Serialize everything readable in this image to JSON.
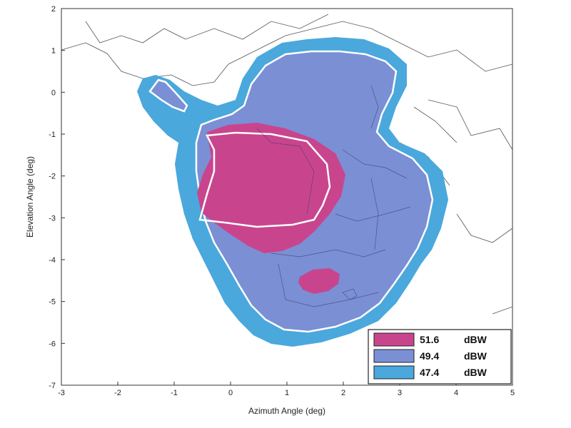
{
  "chart_data": {
    "type": "contour-map",
    "title": "",
    "xlabel": "Azimuth Angle (deg)",
    "ylabel": "Elevation Angle (deg)",
    "xlim": [
      -3,
      5
    ],
    "ylim": [
      -7,
      2
    ],
    "x_ticks": [
      -3,
      -2,
      -1,
      0,
      1,
      2,
      3,
      4,
      5
    ],
    "y_ticks": [
      2,
      1,
      0,
      -1,
      -2,
      -3,
      -4,
      -5,
      -6,
      -7
    ],
    "legend_position": "bottom-right",
    "series": [
      {
        "name": "51.6",
        "unit": "dBW",
        "color": "#c8458e"
      },
      {
        "name": "49.4",
        "unit": "dBW",
        "color": "#7b8fd4"
      },
      {
        "name": "47.4",
        "unit": "dBW",
        "color": "#4aa8dc"
      }
    ]
  }
}
